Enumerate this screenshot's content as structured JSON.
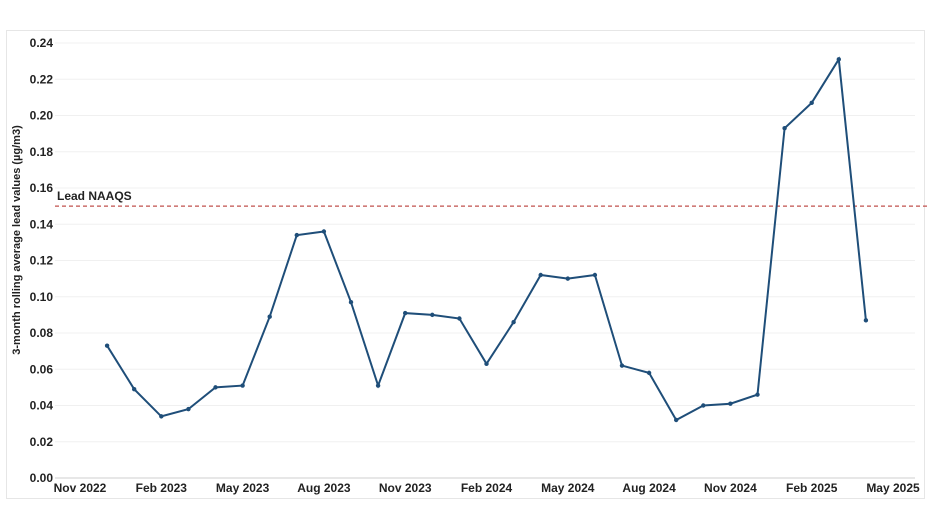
{
  "chart_data": {
    "type": "line",
    "title": "",
    "xlabel": "",
    "ylabel": "3-month rolling average lead values (µg/m3)",
    "ylim": [
      0,
      0.24
    ],
    "yticks": [
      "0.00",
      "0.02",
      "0.04",
      "0.06",
      "0.08",
      "0.10",
      "0.12",
      "0.14",
      "0.16",
      "0.18",
      "0.20",
      "0.22",
      "0.24"
    ],
    "x_tick_labels": [
      "Nov 2022",
      "Feb 2023",
      "May 2023",
      "Aug 2023",
      "Nov 2023",
      "Feb 2024",
      "May 2024",
      "Aug 2024",
      "Nov 2024",
      "Feb 2025",
      "May 2025"
    ],
    "x": [
      "Dec 2022",
      "Jan 2023",
      "Feb 2023",
      "Mar 2023",
      "Apr 2023",
      "May 2023",
      "Jun 2023",
      "Jul 2023",
      "Aug 2023",
      "Sep 2023",
      "Oct 2023",
      "Nov 2023",
      "Dec 2023",
      "Jan 2024",
      "Feb 2024",
      "Mar 2024",
      "Apr 2024",
      "May 2024",
      "Jun 2024",
      "Jul 2024",
      "Aug 2024",
      "Sep 2024",
      "Oct 2024",
      "Nov 2024",
      "Dec 2024",
      "Jan 2025",
      "Feb 2025",
      "Mar 2025",
      "Apr 2025"
    ],
    "series": [
      {
        "values": [
          0.073,
          0.049,
          0.034,
          0.038,
          0.05,
          0.051,
          0.089,
          0.134,
          0.136,
          0.097,
          0.051,
          0.091,
          0.09,
          0.088,
          0.063,
          0.086,
          0.112,
          0.11,
          0.112,
          0.062,
          0.058,
          0.032,
          0.04,
          0.041,
          0.046,
          0.193,
          0.207,
          0.231,
          0.087
        ],
        "color": "#1f4e79"
      }
    ],
    "reference_line": {
      "label": "Lead NAAQS",
      "value": 0.15,
      "color": "#c0504d"
    },
    "grid": true,
    "legend": "none"
  }
}
